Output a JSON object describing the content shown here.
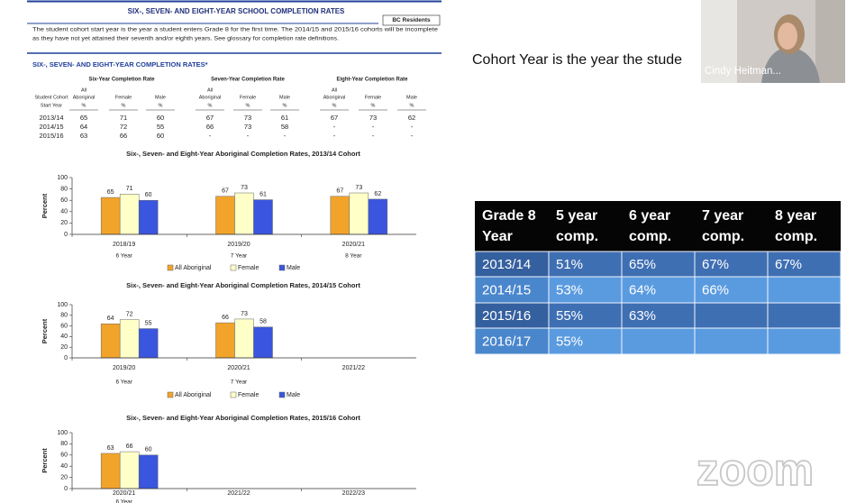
{
  "document": {
    "title": "SIX-, SEVEN- AND EIGHT-YEAR SCHOOL COMPLETION RATES",
    "badge": "BC Residents",
    "intro": [
      "The student cohort start year is the year a student enters Grade 8 for the first time. The 2014/15 and 2015/16 cohorts will be incomplete",
      "as they have not yet attained their seventh and/or eighth years. See glossary for completion rate definitions."
    ],
    "section_heading": "SIX-, SEVEN- AND EIGHT-YEAR COMPLETION RATES*",
    "table": {
      "group_headers": [
        "Six-Year Completion Rate",
        "Seven-Year Completion Rate",
        "Eight-Year Completion Rate"
      ],
      "row_header": [
        "Student Cohort",
        "Start Year"
      ],
      "column_headers": [
        [
          "All",
          "Aboriginal"
        ],
        [
          "Female"
        ],
        [
          "Male"
        ]
      ],
      "unit": "%",
      "rows": [
        [
          "2013/14",
          "65",
          "71",
          "60",
          "67",
          "73",
          "61",
          "67",
          "73",
          "62"
        ],
        [
          "2014/15",
          "64",
          "72",
          "55",
          "66",
          "73",
          "58",
          "-",
          "-",
          "-"
        ],
        [
          "2015/16",
          "63",
          "66",
          "60",
          "-",
          "-",
          "-",
          "-",
          "-",
          "-"
        ]
      ]
    }
  },
  "chart_data": [
    {
      "type": "bar",
      "title": "Six-, Seven- and Eight-Year Aboriginal Completion Rates, 2013/14 Cohort",
      "ylabel": "Percent",
      "categories": [
        "2018/19",
        "2019/20",
        "2020/21"
      ],
      "sublabels": [
        "6 Year",
        "7 Year",
        "8 Year"
      ],
      "series": [
        {
          "name": "All Aboriginal",
          "color": "#f2a42a",
          "values": [
            65,
            67,
            67
          ]
        },
        {
          "name": "Female",
          "color": "#ffffc8",
          "values": [
            71,
            73,
            73
          ]
        },
        {
          "name": "Male",
          "color": "#3a55de",
          "values": [
            60,
            61,
            62
          ]
        }
      ],
      "ylim": [
        0,
        100
      ],
      "yticks": [
        0,
        20,
        40,
        60,
        80,
        100
      ],
      "legend": "bottom"
    },
    {
      "type": "bar",
      "title": "Six-, Seven- and Eight-Year Aboriginal Completion Rates, 2014/15 Cohort",
      "ylabel": "Percent",
      "categories": [
        "2019/20",
        "2020/21",
        "2021/22"
      ],
      "sublabels": [
        "6 Year",
        "7 Year",
        null
      ],
      "series": [
        {
          "name": "All Aboriginal",
          "color": "#f2a42a",
          "values": [
            64,
            66,
            null
          ]
        },
        {
          "name": "Female",
          "color": "#ffffc8",
          "values": [
            72,
            73,
            null
          ]
        },
        {
          "name": "Male",
          "color": "#3a55de",
          "values": [
            55,
            58,
            null
          ]
        }
      ],
      "ylim": [
        0,
        100
      ],
      "yticks": [
        0,
        20,
        40,
        60,
        80,
        100
      ],
      "legend": "bottom"
    },
    {
      "type": "bar",
      "title": "Six-, Seven- and Eight-Year Aboriginal Completion Rates, 2015/16 Cohort",
      "ylabel": "Percent",
      "categories": [
        "2020/21",
        "2021/22",
        "2022/23"
      ],
      "sublabels": [
        "6 Year",
        null,
        null
      ],
      "series": [
        {
          "color": "#f2a42a",
          "values": [
            63,
            null,
            null
          ]
        },
        {
          "color": "#ffffc8",
          "values": [
            66,
            null,
            null
          ]
        },
        {
          "color": "#3a55de",
          "values": [
            60,
            null,
            null
          ]
        }
      ],
      "ylim": [
        0,
        100
      ],
      "yticks": [
        0,
        20,
        40,
        60,
        80,
        100
      ]
    }
  ],
  "slide": {
    "caption": "Cohort Year is the year the stude",
    "table": {
      "header": [
        [
          "Grade 8",
          "Year"
        ],
        [
          "5 year",
          "comp."
        ],
        [
          "6 year",
          "comp."
        ],
        [
          "7 year",
          "comp."
        ],
        [
          "8 year",
          "comp."
        ]
      ],
      "rows": [
        [
          "2013/14",
          "51%",
          "65%",
          "67%",
          "67%"
        ],
        [
          "2014/15",
          "53%",
          "64%",
          "66%",
          null
        ],
        [
          "2015/16",
          "55%",
          "63%",
          null,
          null
        ],
        [
          "2016/17",
          "55%",
          null,
          null,
          null
        ]
      ]
    }
  },
  "webcam": {
    "name": "Cindy Heitman..."
  },
  "zoom_logo": "zoom"
}
